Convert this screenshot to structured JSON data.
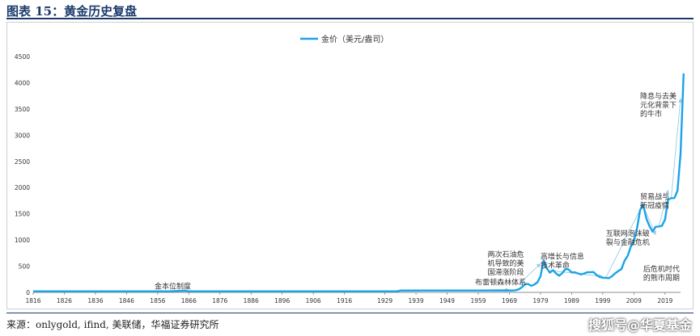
{
  "figure": {
    "title": "图表 15：黄金历史复盘",
    "source": "来源：onlygold, ifind, 美联储，华福证券研究所",
    "watermark": "搜狐号@华夏基金"
  },
  "colors": {
    "series": "#1aa3e8",
    "arrow": "#9ec9e4",
    "text": "#333333",
    "frame": "#1b3a6b"
  },
  "chart_data": {
    "type": "line",
    "title": "",
    "xlabel": "",
    "ylabel": "",
    "legend_position": "top-center",
    "grid": false,
    "ylim": [
      0,
      4500
    ],
    "xlim": [
      1816,
      2024
    ],
    "yticks": [
      0,
      500,
      1000,
      1500,
      2000,
      2500,
      3000,
      3500,
      4000,
      4500
    ],
    "xticks": [
      1816,
      1826,
      1836,
      1846,
      1856,
      1866,
      1876,
      1886,
      1896,
      1906,
      1916,
      1929,
      1939,
      1949,
      1959,
      1969,
      1979,
      1989,
      1999,
      2009,
      2019
    ],
    "series": [
      {
        "name": "金价（美元/盎司）",
        "x": [
          1816,
          1834,
          1835,
          1860,
          1861,
          1865,
          1866,
          1879,
          1900,
          1920,
          1933,
          1934,
          1944,
          1960,
          1968,
          1970,
          1971,
          1972,
          1973,
          1974,
          1975,
          1976,
          1977,
          1978,
          1979,
          1980,
          1981,
          1982,
          1983,
          1984,
          1985,
          1986,
          1987,
          1988,
          1989,
          1990,
          1991,
          1992,
          1993,
          1994,
          1995,
          1996,
          1997,
          1998,
          1999,
          2000,
          2001,
          2002,
          2003,
          2004,
          2005,
          2006,
          2007,
          2008,
          2009,
          2010,
          2011,
          2012,
          2013,
          2014,
          2015,
          2016,
          2017,
          2018,
          2019,
          2020,
          2021,
          2022,
          2023,
          2024
        ],
        "y": [
          19.4,
          19.4,
          20.7,
          20.7,
          24,
          32,
          20.7,
          20.7,
          20.7,
          20.7,
          20.7,
          35,
          35,
          35,
          39,
          36,
          41,
          58,
          97,
          154,
          161,
          125,
          148,
          193,
          306,
          612,
          460,
          376,
          424,
          361,
          317,
          368,
          447,
          437,
          381,
          383,
          362,
          344,
          360,
          384,
          384,
          388,
          331,
          294,
          279,
          279,
          271,
          310,
          363,
          409,
          444,
          604,
          695,
          872,
          972,
          1225,
          1572,
          1669,
          1411,
          1266,
          1160,
          1251,
          1257,
          1268,
          1392,
          1770,
          1799,
          1800,
          1940,
          2650
        ],
        "end_value": 4180,
        "end_x": 2025
      }
    ],
    "annotations": [
      {
        "text": [
          "金本位制度"
        ],
        "x": 1855,
        "y": 70,
        "arrow": [
          1820,
          20,
          1940,
          20
        ]
      },
      {
        "text": [
          "布雷顿森林体系"
        ],
        "x": 1958,
        "y": 150,
        "arrow": [
          1944,
          45,
          1969,
          45
        ]
      },
      {
        "text": [
          "两次石油危",
          "机导致的美",
          "国滞涨阶段"
        ],
        "x": 1962,
        "y": 680,
        "arrow": [
          1972,
          150,
          1979,
          550
        ]
      },
      {
        "text": [
          "高增长与信息",
          "技术革命"
        ],
        "x": 1979,
        "y": 640,
        "arrow": [
          1982,
          420,
          1999,
          300
        ]
      },
      {
        "text": [
          "互联网泡沫破",
          "裂与金融危机"
        ],
        "x": 2000,
        "y": 1080,
        "arrow": [
          2000,
          280,
          2012,
          1700
        ]
      },
      {
        "text": [
          "后危机时代",
          "的熊市周期"
        ],
        "x": 2012,
        "y": 400,
        "arrow": [
          2012,
          1650,
          2016,
          1100
        ]
      },
      {
        "text": [
          "贸易战与",
          "新冠疫情"
        ],
        "x": 2011,
        "y": 1780,
        "arrow": [
          2017,
          1250,
          2020,
          1950
        ]
      },
      {
        "text": [
          "降息与去美",
          "元化背景下",
          "的牛市"
        ],
        "x": 2011,
        "y": 3700,
        "arrow": [
          2021,
          1800,
          2024,
          3700
        ]
      }
    ]
  }
}
